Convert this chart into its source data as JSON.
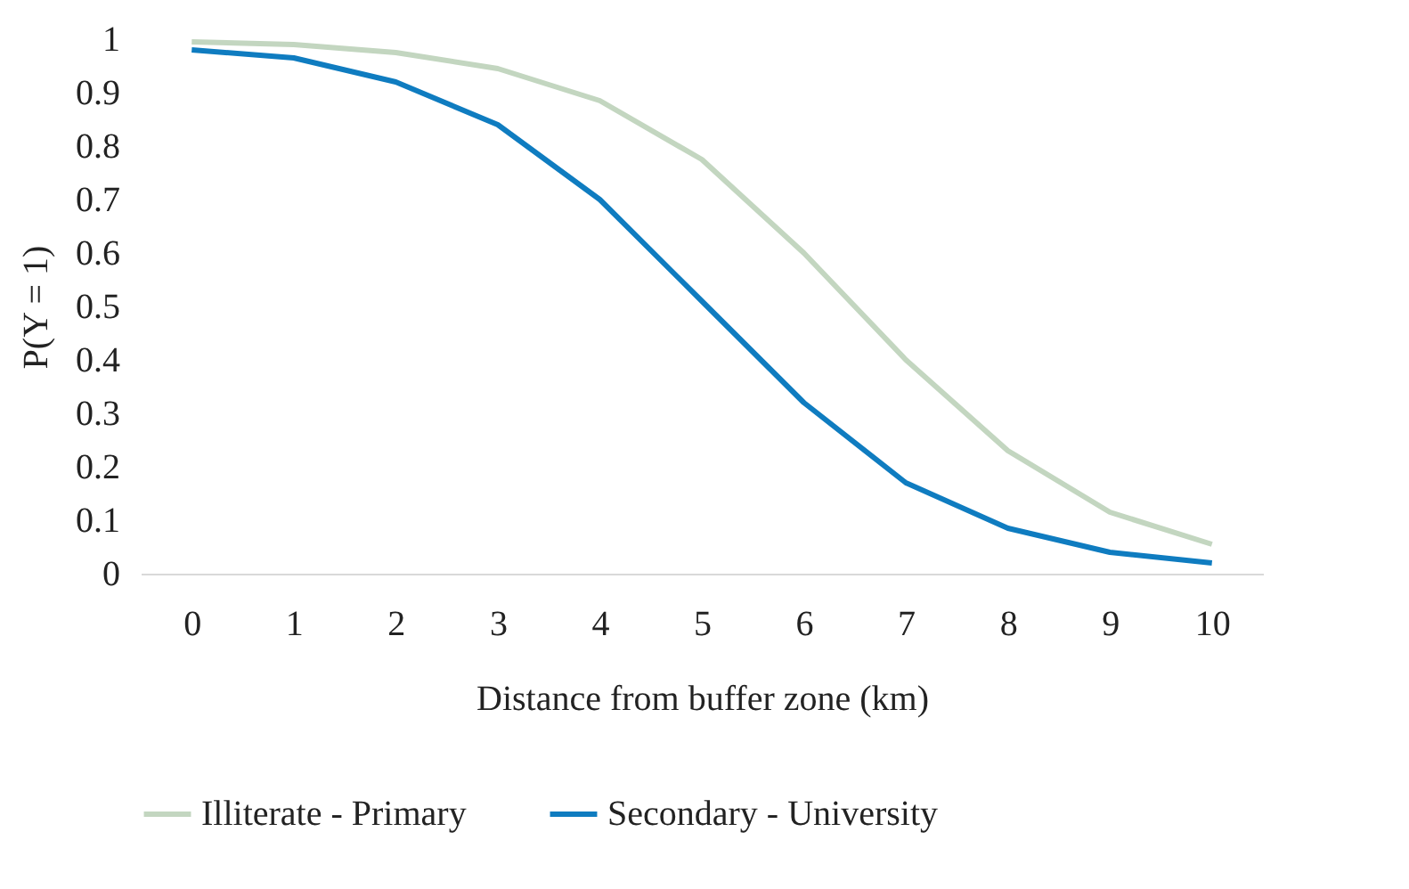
{
  "chart_data": {
    "type": "line",
    "xlabel": "Distance from buffer zone (km)",
    "ylabel": "P(Y = 1)",
    "categories": [
      "0",
      "1",
      "2",
      "3",
      "4",
      "5",
      "6",
      "7",
      "8",
      "9",
      "10"
    ],
    "series": [
      {
        "name": "Illiterate - Primary",
        "color": "#c3d6c0",
        "values": [
          0.995,
          0.99,
          0.975,
          0.945,
          0.885,
          0.775,
          0.6,
          0.4,
          0.23,
          0.115,
          0.055
        ]
      },
      {
        "name": "Secondary - University",
        "color": "#0f7cc0",
        "values": [
          0.98,
          0.965,
          0.92,
          0.84,
          0.7,
          0.51,
          0.32,
          0.17,
          0.085,
          0.04,
          0.02
        ]
      }
    ],
    "ylim": [
      0,
      1
    ],
    "yticks": [
      0,
      0.1,
      0.2,
      0.3,
      0.4,
      0.5,
      0.6,
      0.7,
      0.8,
      0.9,
      1
    ],
    "grid": false,
    "legend": "bottom",
    "marker": "none",
    "line_style": "solid"
  }
}
